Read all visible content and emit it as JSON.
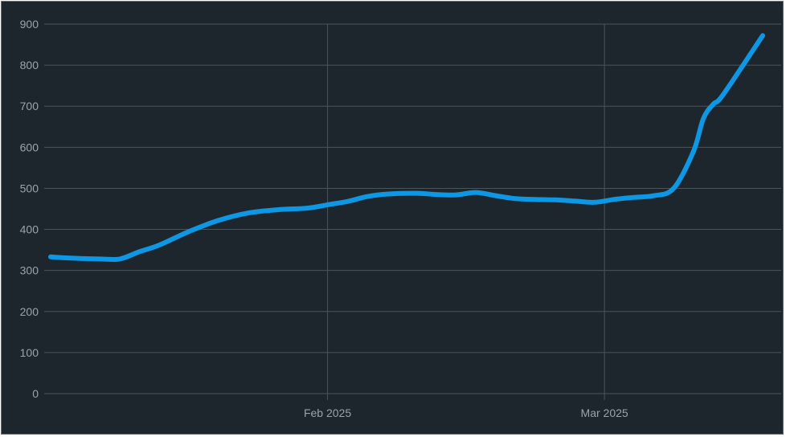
{
  "theme": {
    "background": "#1c262c",
    "grid": "#4a555b",
    "tick_text": "#9aa3a8",
    "line": "#0e97e4"
  },
  "chart_data": {
    "type": "line",
    "title": "",
    "xlabel": "",
    "ylabel": "",
    "ylim": [
      0,
      900
    ],
    "xlim": [
      "2025-01-04",
      "2025-03-17"
    ],
    "y_ticks": [
      0,
      100,
      200,
      300,
      400,
      500,
      600,
      700,
      800,
      900
    ],
    "y_tick_labels": [
      "0",
      "100",
      "200",
      "300",
      "400",
      "500",
      "600",
      "700",
      "800",
      "900"
    ],
    "x_ticks": [
      "2025-02-01",
      "2025-03-01"
    ],
    "x_tick_labels": [
      "Feb 2025",
      "Mar 2025"
    ],
    "grid": true,
    "legend": "none",
    "series": [
      {
        "color": "#0e97e4",
        "x": [
          "2025-01-04",
          "2025-01-06",
          "2025-01-09",
          "2025-01-11",
          "2025-01-13",
          "2025-01-15",
          "2025-01-18",
          "2025-01-21",
          "2025-01-24",
          "2025-01-27",
          "2025-01-30",
          "2025-02-01",
          "2025-02-03",
          "2025-02-05",
          "2025-02-07",
          "2025-02-10",
          "2025-02-12",
          "2025-02-14",
          "2025-02-16",
          "2025-02-18",
          "2025-02-20",
          "2025-02-22",
          "2025-02-24",
          "2025-02-26",
          "2025-02-28",
          "2025-03-02",
          "2025-03-04",
          "2025-03-06",
          "2025-03-08",
          "2025-03-10",
          "2025-03-11",
          "2025-03-12",
          "2025-03-13",
          "2025-03-17"
        ],
        "values": [
          333,
          330,
          328,
          328,
          346,
          362,
          395,
          422,
          440,
          448,
          452,
          460,
          468,
          480,
          486,
          488,
          485,
          484,
          490,
          482,
          475,
          473,
          472,
          469,
          466,
          473,
          478,
          482,
          500,
          590,
          670,
          705,
          728,
          872
        ]
      }
    ]
  }
}
